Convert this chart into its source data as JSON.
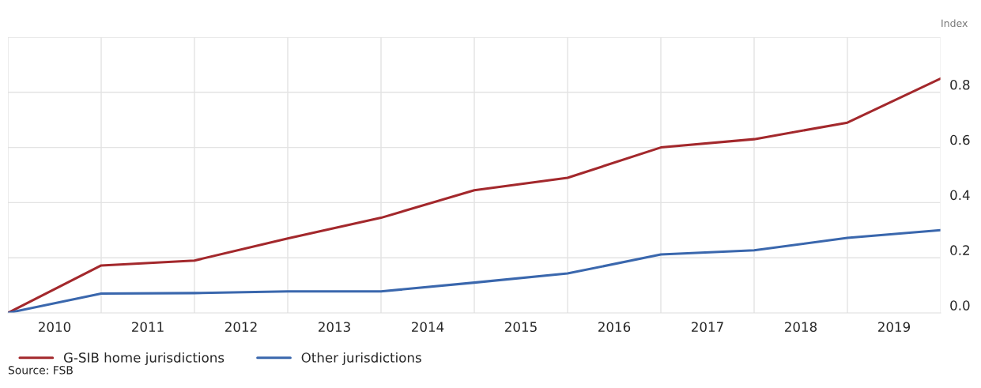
{
  "chart_data": {
    "type": "line",
    "x": [
      2010,
      2011,
      2012,
      2013,
      2014,
      2015,
      2016,
      2017,
      2018,
      2019,
      2020
    ],
    "series": [
      {
        "name": "G-SIB home jurisdictions",
        "color": "#a3282c",
        "values": [
          0.0,
          0.172,
          0.19,
          0.27,
          0.345,
          0.445,
          0.49,
          0.6,
          0.63,
          0.69,
          0.85
        ]
      },
      {
        "name": "Other jurisdictions",
        "color": "#3a67ad",
        "values": [
          0.0,
          0.07,
          0.072,
          0.078,
          0.078,
          0.11,
          0.143,
          0.212,
          0.227,
          0.272,
          0.3
        ]
      }
    ],
    "xlim": [
      2010,
      2020
    ],
    "xticks": [
      {
        "value": 2010,
        "label": null
      },
      {
        "value": 2010.5,
        "label": "2010"
      },
      {
        "value": 2011,
        "label": null
      },
      {
        "value": 2011.5,
        "label": "2011"
      },
      {
        "value": 2012,
        "label": null
      },
      {
        "value": 2012.5,
        "label": "2012"
      },
      {
        "value": 2013,
        "label": null
      },
      {
        "value": 2013.5,
        "label": "2013"
      },
      {
        "value": 2014,
        "label": null
      },
      {
        "value": 2014.5,
        "label": "2014"
      },
      {
        "value": 2015,
        "label": null
      },
      {
        "value": 2015.5,
        "label": "2015"
      },
      {
        "value": 2016,
        "label": null
      },
      {
        "value": 2016.5,
        "label": "2016"
      },
      {
        "value": 2017,
        "label": null
      },
      {
        "value": 2017.5,
        "label": "2017"
      },
      {
        "value": 2018,
        "label": null
      },
      {
        "value": 2018.5,
        "label": "2018"
      },
      {
        "value": 2019,
        "label": null
      },
      {
        "value": 2019.5,
        "label": "2019"
      },
      {
        "value": 2020,
        "label": null
      }
    ],
    "ylim": [
      0,
      1.0
    ],
    "yticks": [
      {
        "value": 0,
        "label": "0.0"
      },
      {
        "value": 0.2,
        "label": "0.2"
      },
      {
        "value": 0.4,
        "label": "0.4"
      },
      {
        "value": 0.6,
        "label": "0.6"
      },
      {
        "value": 0.8,
        "label": "0.8"
      }
    ],
    "ylabel": "Index",
    "grid": true,
    "legend": "bottom",
    "marker": "none",
    "line_style": "solid",
    "annotations": [
      "Source: FSB"
    ]
  }
}
